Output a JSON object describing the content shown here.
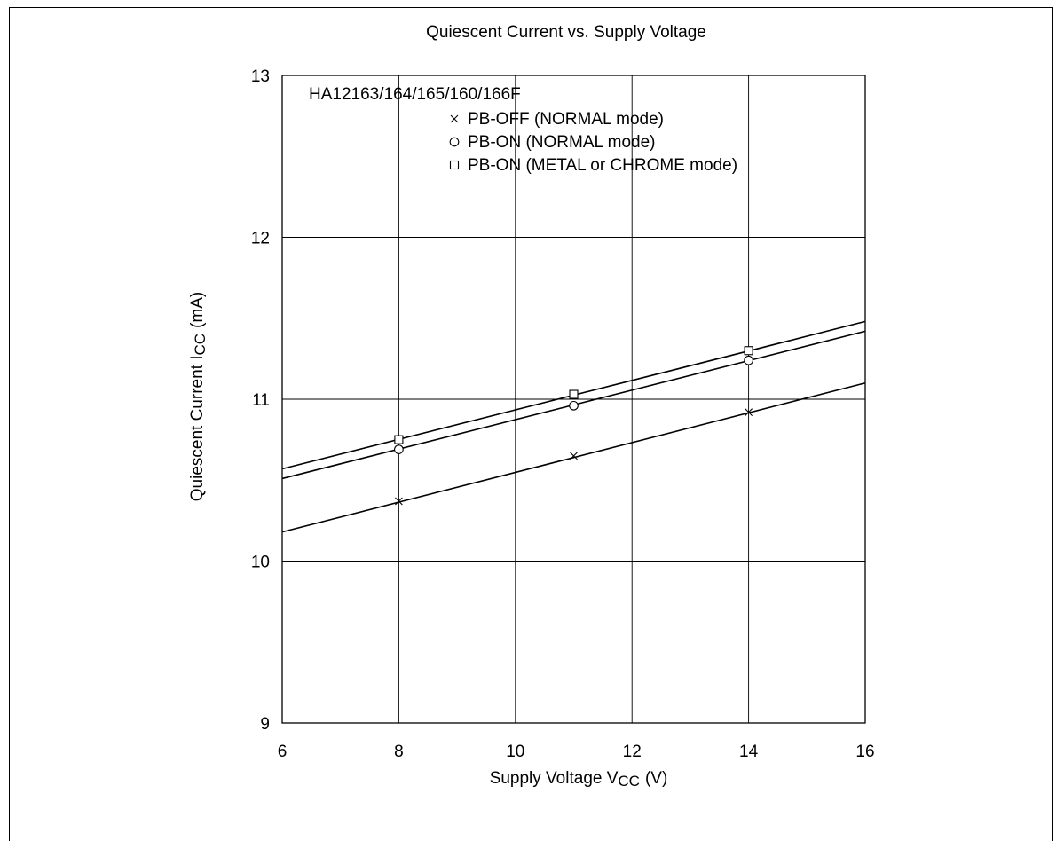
{
  "chart_data": {
    "type": "line",
    "title": "Quiescent Current vs. Supply Voltage",
    "xlabel": {
      "main": "Supply Voltage V",
      "sub": "CC",
      "unit": "(V)"
    },
    "ylabel": {
      "main": "Quiescent Current I",
      "sub": "CC",
      "unit": "(mA)"
    },
    "xlim": [
      6,
      16
    ],
    "ylim": [
      9,
      13
    ],
    "x_ticks": [
      6,
      8,
      10,
      12,
      14,
      16
    ],
    "y_ticks": [
      9,
      10,
      11,
      12,
      13
    ],
    "grid": true,
    "legend_title": "HA12163/164/165/160/166F",
    "legend_position": "top-left",
    "series": [
      {
        "name": "PB-OFF (NORMAL mode)",
        "marker": "x",
        "x": [
          8,
          11,
          14
        ],
        "y": [
          10.37,
          10.65,
          10.92
        ],
        "line": {
          "x": [
            6,
            16
          ],
          "y": [
            10.18,
            11.1
          ]
        }
      },
      {
        "name": "PB-ON (NORMAL mode)",
        "marker": "circle",
        "x": [
          8,
          11,
          14
        ],
        "y": [
          10.69,
          10.96,
          11.24
        ],
        "line": {
          "x": [
            6,
            16
          ],
          "y": [
            10.51,
            11.42
          ]
        }
      },
      {
        "name": "PB-ON (METAL or CHROME mode)",
        "marker": "square",
        "x": [
          8,
          11,
          14
        ],
        "y": [
          10.75,
          11.03,
          11.3
        ],
        "line": {
          "x": [
            6,
            16
          ],
          "y": [
            10.57,
            11.48
          ]
        }
      }
    ]
  }
}
